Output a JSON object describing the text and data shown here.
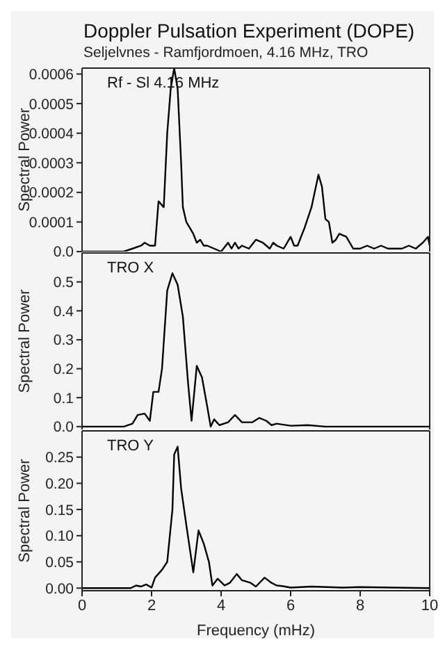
{
  "chart_data": [
    {
      "type": "line",
      "title": "Doppler Pulsation Experiment (DOPE)",
      "subtitle": "Seljelvnes - Ramfjordmoen, 4.16 MHz, TRO",
      "ylabel": "Spectral Power",
      "annotations": [
        "Rf - Sl 4.16 MHz"
      ],
      "tick_labels": "y",
      "xlim": [
        0,
        10
      ],
      "xticks": [
        0,
        2,
        4,
        6,
        8,
        10
      ],
      "ylim": [
        0,
        0.00062
      ],
      "yticks": [
        {
          "value": 0,
          "label": "0.0"
        },
        0.0001,
        0.0002,
        0.0003,
        0.0004,
        0.0005,
        0.0006
      ],
      "series": [
        {
          "color": "#000000",
          "x": [
            0,
            1.2,
            1.45,
            1.7,
            1.8,
            1.95,
            2.1,
            2.2,
            2.35,
            2.45,
            2.55,
            2.65,
            2.75,
            2.85,
            2.9,
            3.0,
            3.1,
            3.2,
            3.3,
            3.4,
            3.5,
            3.6,
            3.8,
            4.0,
            4.2,
            4.3,
            4.4,
            4.5,
            4.6,
            4.8,
            5.0,
            5.2,
            5.4,
            5.5,
            5.6,
            5.8,
            6.0,
            6.1,
            6.2,
            6.4,
            6.6,
            6.8,
            6.9,
            7.0,
            7.1,
            7.2,
            7.3,
            7.4,
            7.6,
            7.8,
            8.0,
            8.2,
            8.4,
            8.6,
            8.8,
            9.0,
            9.2,
            9.4,
            9.6,
            9.8,
            9.95,
            10
          ],
          "values": [
            0,
            0,
            1e-05,
            2e-05,
            3e-05,
            2e-05,
            2e-05,
            0.00017,
            0.00015,
            0.0004,
            0.00055,
            0.00062,
            0.00055,
            0.0003,
            0.00015,
            0.0001,
            8e-05,
            6e-05,
            3e-05,
            4e-05,
            2e-05,
            2e-05,
            1e-05,
            0,
            3e-05,
            1e-05,
            3e-05,
            1e-05,
            2e-05,
            1e-05,
            4e-05,
            3e-05,
            1e-05,
            3e-05,
            2e-05,
            1e-05,
            5e-05,
            2e-05,
            2e-05,
            8e-05,
            0.00015,
            0.00026,
            0.00022,
            0.00011,
            0.0001,
            3e-05,
            4e-05,
            6e-05,
            5e-05,
            1e-05,
            1e-05,
            2e-05,
            1e-05,
            2e-05,
            1e-05,
            1e-05,
            1e-05,
            2e-05,
            1e-05,
            3e-05,
            5e-05,
            2e-05
          ]
        }
      ]
    },
    {
      "type": "line",
      "ylabel": "Spectral Power",
      "annotations": [
        "TRO X"
      ],
      "tick_labels": "y",
      "xlim": [
        0,
        10
      ],
      "xticks": [
        0,
        2,
        4,
        6,
        8,
        10
      ],
      "ylim": [
        -0.01,
        0.6
      ],
      "yticks": [
        {
          "value": 0,
          "label": "0.0"
        },
        0.1,
        0.2,
        0.3,
        0.4,
        0.5
      ],
      "series": [
        {
          "color": "#000000",
          "x": [
            0,
            1.2,
            1.45,
            1.6,
            1.8,
            1.95,
            2.05,
            2.2,
            2.3,
            2.45,
            2.6,
            2.75,
            2.9,
            3.05,
            3.15,
            3.3,
            3.45,
            3.6,
            3.7,
            3.8,
            3.95,
            4.2,
            4.4,
            4.6,
            4.9,
            5.1,
            5.3,
            5.45,
            5.6,
            6.0,
            6.5,
            7.0,
            10
          ],
          "values": [
            0,
            0,
            0.01,
            0.04,
            0.045,
            0.02,
            0.12,
            0.12,
            0.2,
            0.47,
            0.53,
            0.49,
            0.38,
            0.15,
            0.02,
            0.21,
            0.17,
            0.07,
            0,
            0.025,
            0.005,
            0.015,
            0.04,
            0.015,
            0.015,
            0.03,
            0.02,
            0.005,
            0.01,
            0.003,
            0.005,
            0,
            0
          ]
        }
      ]
    },
    {
      "type": "line",
      "ylabel": "Spectral Power",
      "xlabel": "Frequency (mHz)",
      "annotations": [
        "TRO Y"
      ],
      "xlim": [
        0,
        10
      ],
      "xticks": [
        0,
        2,
        4,
        6,
        8,
        10
      ],
      "ylim": [
        -0.005,
        0.3
      ],
      "yticks": [
        {
          "value": 0,
          "label": "0.00"
        },
        0.05,
        {
          "value": 0.1,
          "label": "0.10"
        },
        0.15,
        {
          "value": 0.2,
          "label": "0.20"
        },
        0.25
      ],
      "series": [
        {
          "color": "#000000",
          "x": [
            0,
            1.4,
            1.55,
            1.7,
            1.85,
            2.0,
            2.1,
            2.3,
            2.45,
            2.6,
            2.65,
            2.75,
            2.85,
            3.0,
            3.2,
            3.35,
            3.5,
            3.65,
            3.75,
            3.9,
            4.1,
            4.25,
            4.45,
            4.6,
            4.85,
            5.0,
            5.25,
            5.45,
            5.6,
            5.75,
            6.0,
            6.6,
            7.5,
            8.0,
            10
          ],
          "values": [
            0,
            0,
            0.005,
            0.003,
            0.007,
            0.001,
            0.02,
            0.035,
            0.05,
            0.15,
            0.255,
            0.27,
            0.19,
            0.12,
            0.03,
            0.11,
            0.085,
            0.05,
            0.005,
            0.018,
            0.005,
            0.01,
            0.027,
            0.015,
            0.01,
            0.003,
            0.02,
            0.01,
            0.005,
            0.004,
            0.001,
            0.003,
            0.001,
            0.002,
            0
          ]
        }
      ]
    }
  ]
}
